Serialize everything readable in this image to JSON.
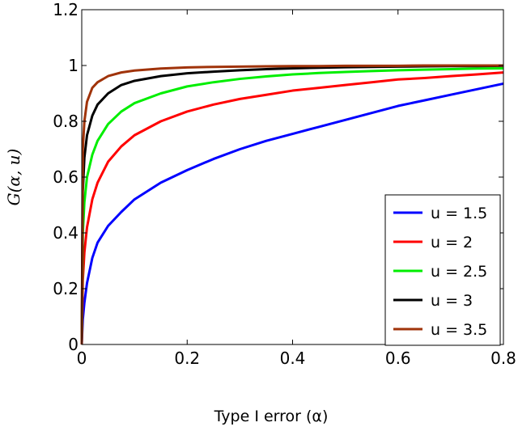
{
  "chart_data": {
    "type": "line",
    "xlabel": "Type I error (α)",
    "ylabel": "G(α, u)",
    "xlim": [
      0,
      0.8
    ],
    "ylim": [
      0,
      1.2
    ],
    "xticks": [
      "0",
      "0.2",
      "0.4",
      "0.6",
      "0.8"
    ],
    "yticks": [
      "0",
      "0.2",
      "0.4",
      "0.6",
      "0.8",
      "1",
      "1.2"
    ],
    "grid": false,
    "legend_position": "bottom-right",
    "x": [
      0,
      0.002,
      0.005,
      0.01,
      0.02,
      0.03,
      0.05,
      0.075,
      0.1,
      0.15,
      0.2,
      0.25,
      0.3,
      0.35,
      0.4,
      0.45,
      0.5,
      0.55,
      0.6,
      0.65,
      0.7,
      0.75,
      0.8
    ],
    "series": [
      {
        "name": "u = 1.5",
        "color": "#0000ff",
        "values": [
          0.0,
          0.09,
          0.15,
          0.22,
          0.31,
          0.365,
          0.425,
          0.475,
          0.52,
          0.58,
          0.625,
          0.665,
          0.7,
          0.73,
          0.755,
          0.78,
          0.805,
          0.83,
          0.855,
          0.875,
          0.895,
          0.915,
          0.935
        ]
      },
      {
        "name": "u = 2",
        "color": "#ff0000",
        "values": [
          0.0,
          0.23,
          0.33,
          0.42,
          0.52,
          0.58,
          0.655,
          0.71,
          0.75,
          0.8,
          0.835,
          0.86,
          0.88,
          0.895,
          0.91,
          0.92,
          0.93,
          0.94,
          0.95,
          0.955,
          0.962,
          0.968,
          0.975
        ]
      },
      {
        "name": "u = 2.5",
        "color": "#00ee00",
        "values": [
          0.0,
          0.4,
          0.51,
          0.6,
          0.68,
          0.73,
          0.79,
          0.835,
          0.865,
          0.9,
          0.925,
          0.94,
          0.952,
          0.961,
          0.968,
          0.973,
          0.977,
          0.98,
          0.983,
          0.985,
          0.987,
          0.989,
          0.99
        ]
      },
      {
        "name": "u = 3",
        "color": "#000000",
        "values": [
          0.0,
          0.55,
          0.67,
          0.75,
          0.82,
          0.86,
          0.9,
          0.93,
          0.945,
          0.962,
          0.972,
          0.978,
          0.983,
          0.987,
          0.99,
          0.992,
          0.994,
          0.995,
          0.996,
          0.997,
          0.998,
          0.998,
          0.999
        ]
      },
      {
        "name": "u = 3.5",
        "color": "#a0330a",
        "values": [
          0.0,
          0.7,
          0.8,
          0.87,
          0.92,
          0.94,
          0.962,
          0.975,
          0.982,
          0.989,
          0.993,
          0.995,
          0.996,
          0.997,
          0.998,
          0.998,
          0.999,
          0.999,
          0.999,
          1.0,
          1.0,
          1.0,
          1.0
        ]
      }
    ]
  }
}
